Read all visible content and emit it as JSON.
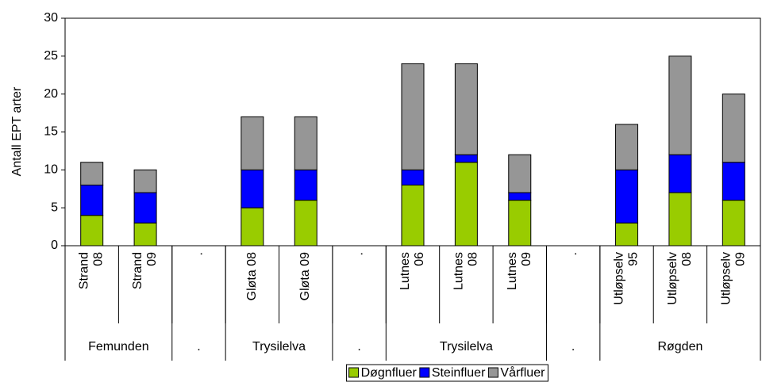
{
  "chart_data": {
    "type": "stacked_bar",
    "y_label": "Antall EPT arter",
    "categories": [
      "Strand\n08",
      "Strand\n09",
      ".",
      "Gløta 08",
      "Gløta 09",
      ".",
      "Lutnes\n06",
      "Lutnes\n08",
      "Lutnes\n09",
      ".",
      "Utløpselv\n95",
      "Utløpselv\n08",
      "Utløpselv\n09"
    ],
    "groups": [
      "Femunden",
      ".",
      "Trysilelva",
      ".",
      "Trysilelva",
      ".",
      "Røgden"
    ],
    "series": [
      {
        "name": "Døgnfluer",
        "color": "#99cc00",
        "values": [
          4,
          3,
          null,
          5,
          6,
          null,
          8,
          11,
          6,
          null,
          3,
          7,
          6
        ]
      },
      {
        "name": "Steinfluer",
        "color": "#0000ff",
        "values": [
          4,
          4,
          null,
          5,
          4,
          null,
          2,
          1,
          1,
          null,
          7,
          5,
          5
        ]
      },
      {
        "name": "Vårfluer",
        "color": "#969696",
        "values": [
          3,
          3,
          null,
          7,
          7,
          null,
          14,
          12,
          5,
          null,
          6,
          13,
          9
        ]
      }
    ],
    "ylim": [
      0,
      30
    ],
    "yticks": [
      0,
      5,
      10,
      15,
      20,
      25,
      30
    ],
    "legend": "bottom"
  }
}
